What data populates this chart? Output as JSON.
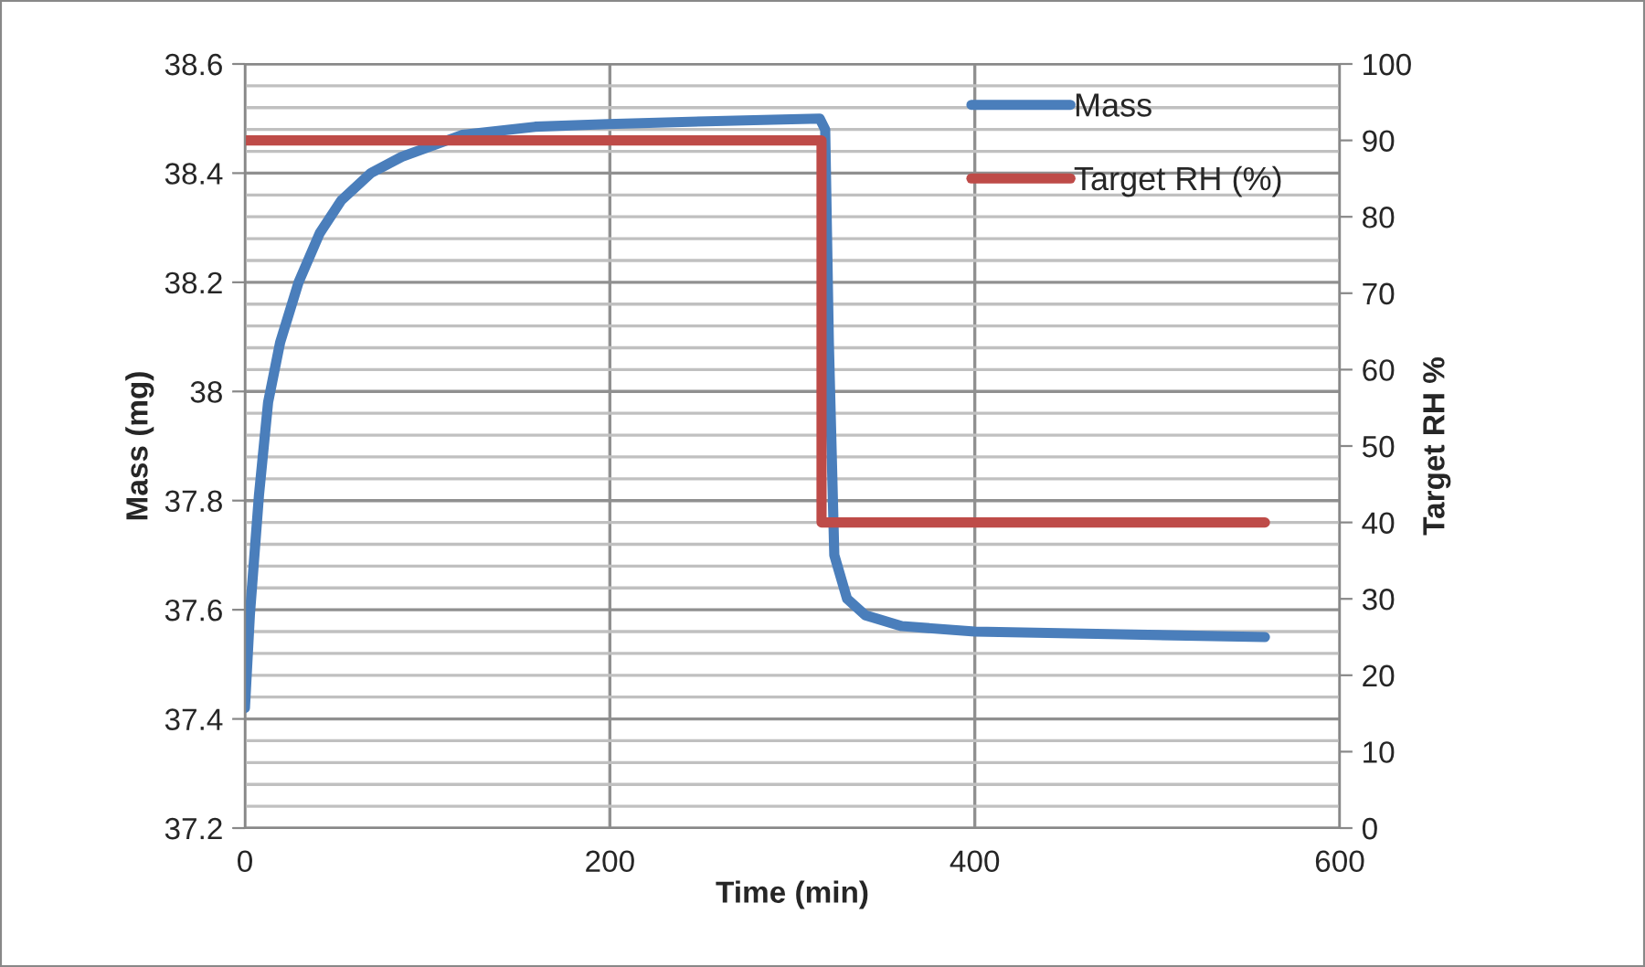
{
  "chart_data": {
    "type": "line",
    "xlabel": "Time (min)",
    "ylabel": "Mass (mg)",
    "y2label": "Target RH %",
    "xlim": [
      0,
      600
    ],
    "xticks": [
      0,
      200,
      400,
      600
    ],
    "ylim": [
      37.2,
      38.6
    ],
    "yticks": [
      {
        "value": 37.2,
        "label": "37.2"
      },
      {
        "value": 37.4,
        "label": "37.4"
      },
      {
        "value": 37.6,
        "label": "37.6"
      },
      {
        "value": 37.8,
        "label": "37.8"
      },
      {
        "value": 38.0,
        "label": "38"
      },
      {
        "value": 38.2,
        "label": "38.2"
      },
      {
        "value": 38.4,
        "label": "38.4"
      },
      {
        "value": 38.6,
        "label": "38.6"
      }
    ],
    "y2lim": [
      0,
      100
    ],
    "y2ticks": [
      0,
      10,
      20,
      30,
      40,
      50,
      60,
      70,
      80,
      90,
      100
    ],
    "grid": true,
    "legend": "top right",
    "marker": "none",
    "line_style": "solid",
    "series": [
      {
        "name": "Mass",
        "color": "#4a7ebb",
        "x": [
          0,
          2.7,
          7.7,
          12.7,
          19.3,
          29.4,
          41,
          52.8,
          69,
          86,
          119,
          159,
          199,
          253,
          315,
          318,
          320,
          323,
          330,
          340,
          360,
          400,
          480,
          559
        ],
        "values": [
          37.42,
          37.59,
          37.81,
          37.98,
          38.09,
          38.2,
          38.29,
          38.35,
          38.4,
          38.43,
          38.47,
          38.485,
          38.49,
          38.495,
          38.5,
          38.48,
          38.09,
          37.7,
          37.62,
          37.59,
          37.57,
          37.56,
          37.555,
          37.55
        ]
      },
      {
        "name": "Target RH (%)",
        "color": "#be4b48",
        "axis": "y2",
        "x": [
          0,
          316,
          316,
          559
        ],
        "values": [
          90,
          90,
          40,
          40
        ]
      }
    ]
  }
}
